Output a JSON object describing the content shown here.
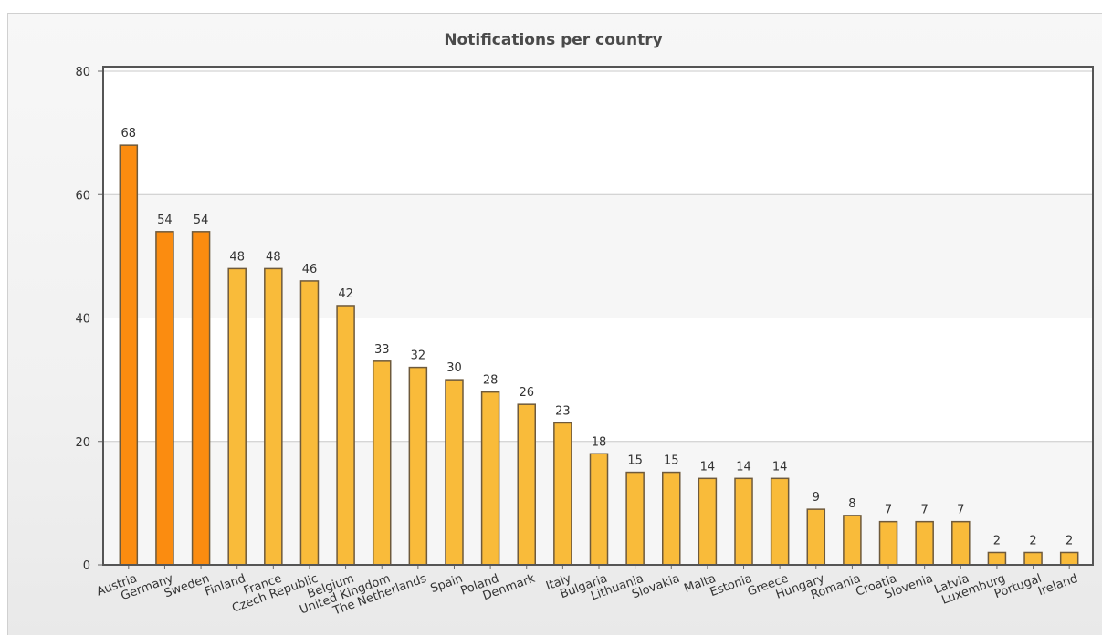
{
  "chart_data": {
    "type": "bar",
    "title": "Notifications per country",
    "xlabel": "",
    "ylabel": "",
    "ylim": [
      0,
      80
    ],
    "yticks": [
      0,
      20,
      40,
      60,
      80
    ],
    "grid": true,
    "categories": [
      "Austria",
      "Germany",
      "Sweden",
      "Finland",
      "France",
      "Czech Republic",
      "Belgium",
      "United Kingdom",
      "The Netherlands",
      "Spain",
      "Poland",
      "Denmark",
      "Italy",
      "Bulgaria",
      "Lithuania",
      "Slovakia",
      "Malta",
      "Estonia",
      "Greece",
      "Hungary",
      "Romania",
      "Croatia",
      "Slovenia",
      "Latvia",
      "Luxemburg",
      "Portugal",
      "Ireland"
    ],
    "values": [
      68,
      54,
      54,
      48,
      48,
      46,
      42,
      33,
      32,
      30,
      28,
      26,
      23,
      18,
      15,
      15,
      14,
      14,
      14,
      9,
      8,
      7,
      7,
      7,
      2,
      2,
      2
    ],
    "highlighted": [
      "Austria",
      "Germany",
      "Sweden"
    ],
    "colors": {
      "highlight_bar": "#fb8c10",
      "default_bar": "#f9bb3a",
      "bar_border": "#6e5a3c",
      "plot_border": "#555555",
      "grid": "#c8c8c8"
    }
  }
}
